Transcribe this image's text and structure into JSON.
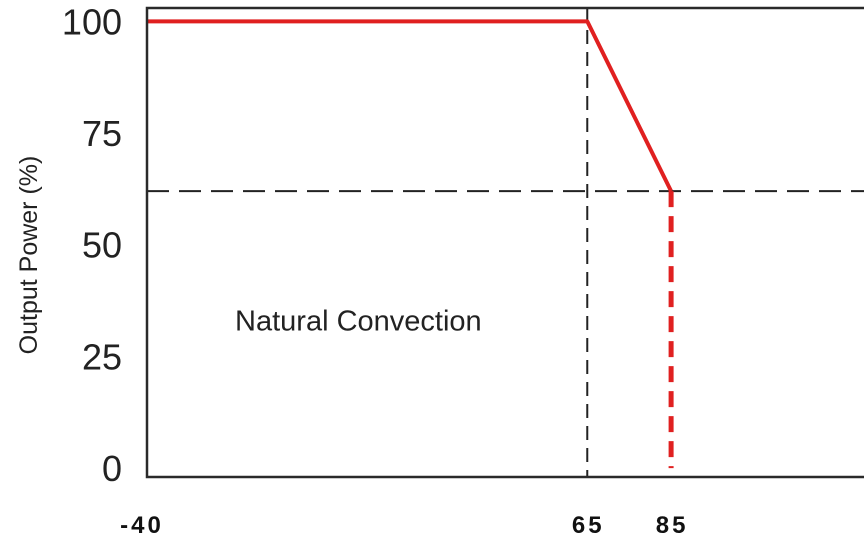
{
  "chart_data": {
    "type": "line",
    "title": "",
    "xlabel": "",
    "ylabel": "Output Power (%)",
    "x_ticks": [
      "-40",
      "65",
      "85"
    ],
    "x_tick_values": [
      -40,
      65,
      85
    ],
    "y_ticks": [
      "0",
      "25",
      "50",
      "75",
      "100"
    ],
    "y_tick_values": [
      0,
      25,
      50,
      75,
      100
    ],
    "xlim": [
      -40,
      131
    ],
    "ylim": [
      -2,
      103
    ],
    "grid": false,
    "series": [
      {
        "color": "#e02020",
        "style": "solid",
        "points": [
          [
            -40,
            100
          ],
          [
            65,
            100
          ],
          [
            85,
            62
          ]
        ]
      },
      {
        "color": "#e02020",
        "style": "dashed",
        "points": [
          [
            85,
            62
          ],
          [
            85,
            0
          ]
        ]
      }
    ],
    "reference_lines": [
      {
        "orientation": "vertical",
        "value": 65,
        "color": "#222222",
        "style": "dashed"
      },
      {
        "orientation": "horizontal",
        "value": 62,
        "color": "#222222",
        "style": "dashed"
      }
    ],
    "annotations": [
      {
        "text": "Natural Convection",
        "x": -19,
        "y": 33
      }
    ]
  }
}
